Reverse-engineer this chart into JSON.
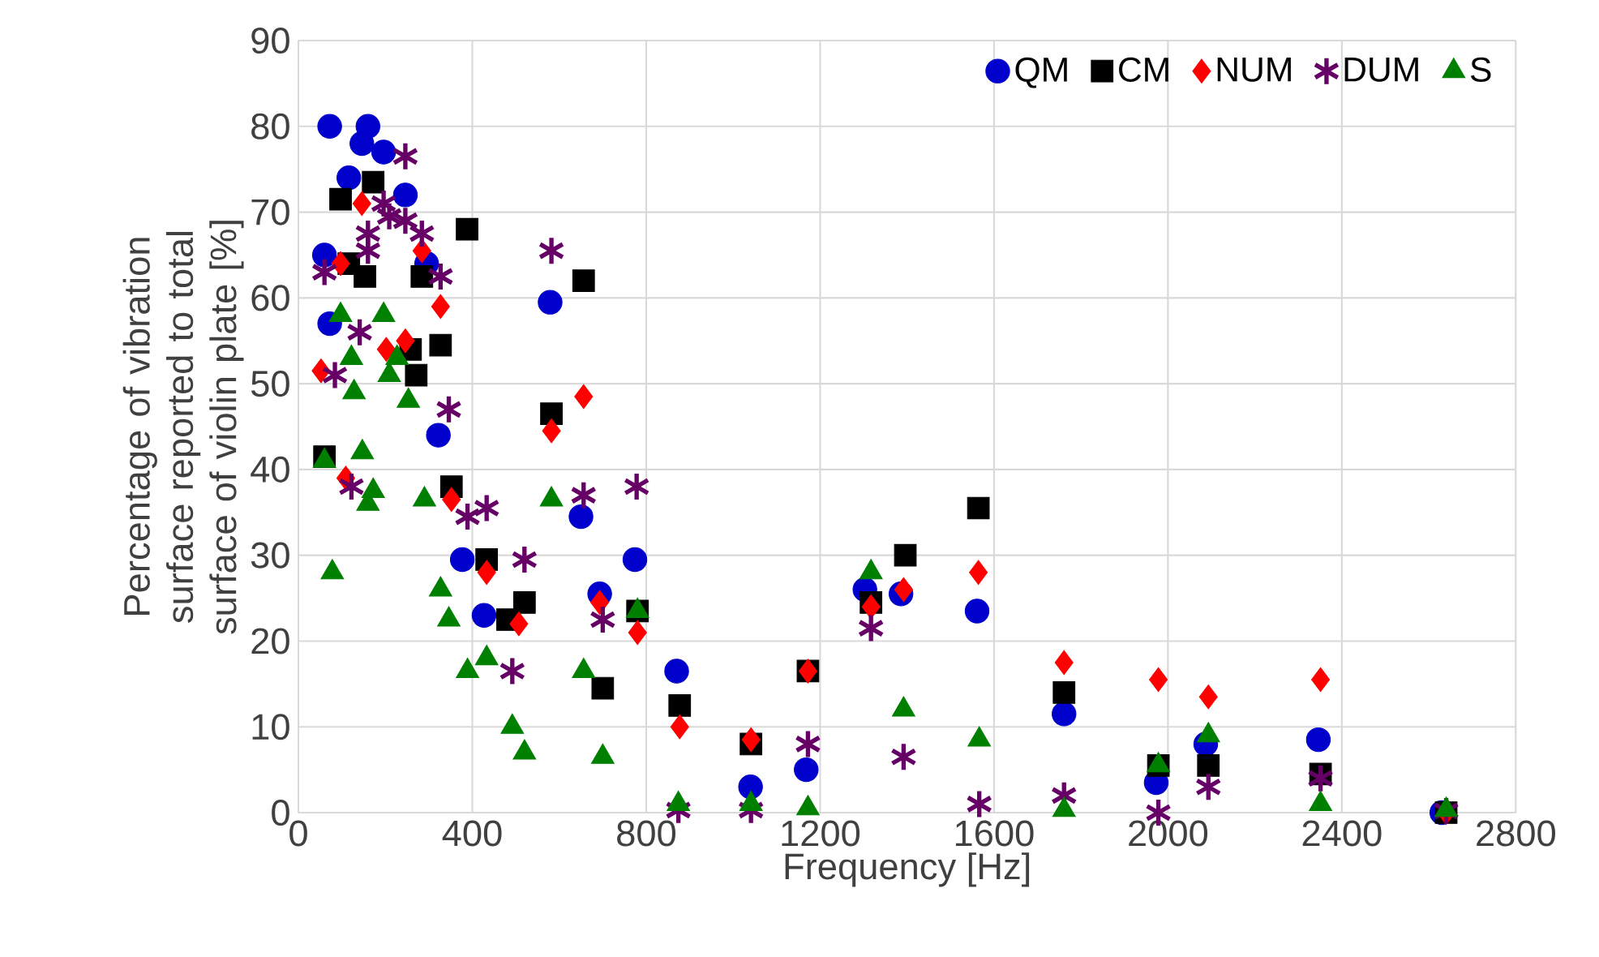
{
  "chart_data": {
    "type": "scatter",
    "xlabel": "Frequency [Hz]",
    "ylabel": "Percentage of vibration surface reported to total surface of violin plate [%]",
    "xlim": [
      0,
      2800
    ],
    "ylim": [
      0,
      90
    ],
    "xticks": [
      0,
      400,
      800,
      1200,
      1600,
      2000,
      2400,
      2800
    ],
    "yticks": [
      0,
      10,
      20,
      30,
      40,
      50,
      60,
      70,
      80,
      90
    ],
    "grid": true,
    "legend": "top right",
    "series": [
      {
        "name": "QM",
        "color": "#0000cc",
        "marker": "circle",
        "x": [
          72,
          146,
          160,
          196,
          246,
          116,
          60,
          295,
          72,
          322,
          377,
          427,
          579,
          650,
          774,
          693,
          870,
          1040,
          1168,
          1303,
          1386,
          1561,
          1761,
          1973,
          2087,
          2346,
          2630
        ],
        "values": [
          80,
          78,
          80,
          77,
          72,
          74,
          65,
          64,
          57,
          44,
          29.5,
          23,
          59.5,
          34.5,
          29.5,
          25.5,
          16.5,
          3,
          5,
          26,
          25.5,
          23.5,
          11.5,
          3.5,
          8,
          8.5,
          0
        ]
      },
      {
        "name": "CM",
        "color": "#000000",
        "marker": "square",
        "x": [
          97,
          172,
          388,
          116,
          153,
          284,
          327,
          258,
          271,
          60,
          352,
          433,
          582,
          656,
          520,
          481,
          700,
          780,
          877,
          1041,
          1172,
          1317,
          1396,
          1564,
          1761,
          1978,
          2093,
          2351,
          2640
        ],
        "values": [
          71.5,
          73.5,
          68,
          64,
          62.5,
          62.5,
          54.5,
          54,
          51,
          41.5,
          38,
          29.5,
          46.5,
          62,
          24.5,
          22.5,
          14.5,
          23.5,
          12.5,
          8,
          16.5,
          24.5,
          30,
          35.5,
          14,
          5.5,
          5.5,
          4.5,
          0
        ]
      },
      {
        "name": "NUM",
        "color": "#ff0000",
        "marker": "diamond",
        "x": [
          146,
          327,
          97,
          284,
          52,
          202,
          246,
          109,
          352,
          433,
          656,
          582,
          507,
          693,
          780,
          877,
          1041,
          1172,
          1317,
          1392,
          1564,
          1761,
          1978,
          2093,
          2351,
          2640
        ],
        "values": [
          71,
          59,
          64,
          65.5,
          51.5,
          54,
          55,
          39,
          36.5,
          28,
          48.5,
          44.5,
          22,
          24.5,
          21,
          10,
          8.5,
          16.5,
          24,
          26,
          28,
          17.5,
          15.5,
          13.5,
          15.5,
          0
        ]
      },
      {
        "name": "DUM",
        "color": "#660066",
        "marker": "cross",
        "x": [
          246,
          196,
          160,
          209,
          246,
          284,
          60,
          327,
          160,
          141,
          84,
          346,
          122,
          389,
          433,
          582,
          656,
          778,
          520,
          700,
          492,
          874,
          1041,
          1172,
          1317,
          1392,
          1566,
          1761,
          1978,
          2093,
          2351,
          2640
        ],
        "values": [
          76.5,
          71,
          67.5,
          69.5,
          69,
          67.5,
          63,
          62.5,
          65.5,
          56,
          51,
          47,
          38,
          34.5,
          35.5,
          65.5,
          37,
          38,
          29.5,
          22.5,
          16.5,
          0.3,
          0.3,
          8,
          21.5,
          6.5,
          1,
          2,
          0,
          3,
          4,
          0.2
        ]
      },
      {
        "name": "S",
        "color": "#008000",
        "marker": "triangle",
        "x": [
          97,
          196,
          122,
          227,
          209,
          128,
          253,
          60,
          147,
          172,
          160,
          290,
          78,
          327,
          346,
          389,
          433,
          582,
          656,
          780,
          492,
          520,
          700,
          874,
          1041,
          1172,
          1317,
          1392,
          1566,
          1761,
          1978,
          2093,
          2351,
          2640
        ],
        "values": [
          58,
          58,
          53,
          53,
          51,
          49,
          48,
          41,
          42,
          37.5,
          36,
          36.5,
          28,
          26,
          22.5,
          16.5,
          18,
          36.5,
          16.5,
          23.5,
          10,
          7,
          6.5,
          1,
          1,
          0.5,
          28,
          12,
          8.5,
          0.3,
          5.5,
          9,
          1,
          0.3
        ]
      }
    ]
  }
}
